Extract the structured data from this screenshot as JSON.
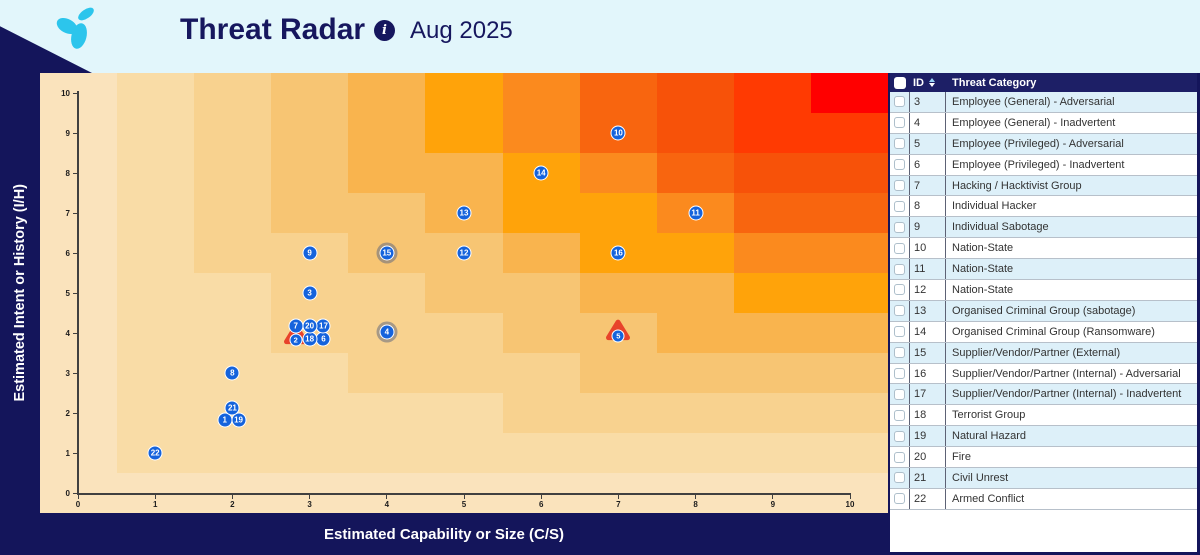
{
  "header": {
    "title": "Threat Radar",
    "date": "Aug 2025",
    "info_icon": "i",
    "logo_color": "#2cc5ec",
    "background": "#e2f6fb",
    "text_color": "#16175e"
  },
  "chart_data": {
    "type": "scatter",
    "xlabel": "Estimated Capability or Size (C/S)",
    "ylabel": "Estimated Intent or History (I/H)",
    "xlim": [
      0,
      10
    ],
    "ylim": [
      0,
      10
    ],
    "x_ticks": [
      0,
      1,
      2,
      3,
      4,
      5,
      6,
      7,
      8,
      9,
      10
    ],
    "y_ticks": [
      0,
      1,
      2,
      3,
      4,
      5,
      6,
      7,
      8,
      9,
      10
    ],
    "heat_rule": "band = ceil((x*y)/10)",
    "heat_palette": [
      "#fae3bc",
      "#f9dca6",
      "#f8d28f",
      "#f7c573",
      "#f9b44e",
      "#ffa30a",
      "#fb8a1e",
      "#f8650f",
      "#f75209",
      "#ff3a02",
      "#ff0000"
    ],
    "point_color": "#1563dc",
    "triangle_color": "#e8432b",
    "ring_color": "rgba(100,105,125,0.55)",
    "points": [
      {
        "id": 1,
        "x": 1.9,
        "y": 1.82,
        "marker": "circle"
      },
      {
        "id": 2,
        "x": 2.82,
        "y": 3.85,
        "marker": "triangle"
      },
      {
        "id": 3,
        "x": 3.0,
        "y": 5.0,
        "marker": "circle"
      },
      {
        "id": 4,
        "x": 4.0,
        "y": 4.02,
        "marker": "ring"
      },
      {
        "id": 5,
        "x": 7.0,
        "y": 3.95,
        "marker": "triangle"
      },
      {
        "id": 6,
        "x": 3.18,
        "y": 3.85,
        "marker": "circle"
      },
      {
        "id": 7,
        "x": 2.82,
        "y": 4.17,
        "marker": "circle"
      },
      {
        "id": 8,
        "x": 2.0,
        "y": 3.0,
        "marker": "circle"
      },
      {
        "id": 9,
        "x": 3.0,
        "y": 6.0,
        "marker": "circle"
      },
      {
        "id": 10,
        "x": 7.0,
        "y": 9.0,
        "marker": "circle"
      },
      {
        "id": 11,
        "x": 8.0,
        "y": 7.0,
        "marker": "circle"
      },
      {
        "id": 12,
        "x": 5.0,
        "y": 6.0,
        "marker": "circle"
      },
      {
        "id": 13,
        "x": 5.0,
        "y": 7.0,
        "marker": "circle"
      },
      {
        "id": 14,
        "x": 6.0,
        "y": 8.0,
        "marker": "circle"
      },
      {
        "id": 15,
        "x": 4.0,
        "y": 6.0,
        "marker": "ring"
      },
      {
        "id": 16,
        "x": 7.0,
        "y": 6.0,
        "marker": "circle"
      },
      {
        "id": 17,
        "x": 3.18,
        "y": 4.17,
        "marker": "circle"
      },
      {
        "id": 18,
        "x": 3.0,
        "y": 3.85,
        "marker": "circle"
      },
      {
        "id": 19,
        "x": 2.08,
        "y": 1.82,
        "marker": "circle"
      },
      {
        "id": 20,
        "x": 3.0,
        "y": 4.17,
        "marker": "circle"
      },
      {
        "id": 21,
        "x": 2.0,
        "y": 2.13,
        "marker": "circle"
      },
      {
        "id": 22,
        "x": 1.0,
        "y": 1.0,
        "marker": "circle"
      }
    ]
  },
  "table": {
    "columns": {
      "id": "ID",
      "category": "Threat Category"
    },
    "row_alt_color": "#ddf0f9",
    "header_color": "#1d1f66",
    "rows": [
      {
        "id": "3",
        "category": "Employee (General) - Adversarial"
      },
      {
        "id": "4",
        "category": "Employee (General) - Inadvertent"
      },
      {
        "id": "5",
        "category": "Employee (Privileged) - Adversarial"
      },
      {
        "id": "6",
        "category": "Employee (Privileged) - Inadvertent"
      },
      {
        "id": "7",
        "category": "Hacking / Hacktivist Group"
      },
      {
        "id": "8",
        "category": "Individual Hacker"
      },
      {
        "id": "9",
        "category": "Individual Sabotage"
      },
      {
        "id": "10",
        "category": "Nation-State"
      },
      {
        "id": "11",
        "category": "Nation-State"
      },
      {
        "id": "12",
        "category": "Nation-State"
      },
      {
        "id": "13",
        "category": "Organised Criminal Group (sabotage)"
      },
      {
        "id": "14",
        "category": "Organised Criminal Group (Ransomware)"
      },
      {
        "id": "15",
        "category": "Supplier/Vendor/Partner (External)"
      },
      {
        "id": "16",
        "category": "Supplier/Vendor/Partner (Internal) - Adversarial"
      },
      {
        "id": "17",
        "category": "Supplier/Vendor/Partner (Internal) - Inadvertent"
      },
      {
        "id": "18",
        "category": "Terrorist Group"
      },
      {
        "id": "19",
        "category": "Natural Hazard"
      },
      {
        "id": "20",
        "category": "Fire"
      },
      {
        "id": "21",
        "category": "Civil Unrest"
      },
      {
        "id": "22",
        "category": "Armed Conflict"
      }
    ]
  }
}
